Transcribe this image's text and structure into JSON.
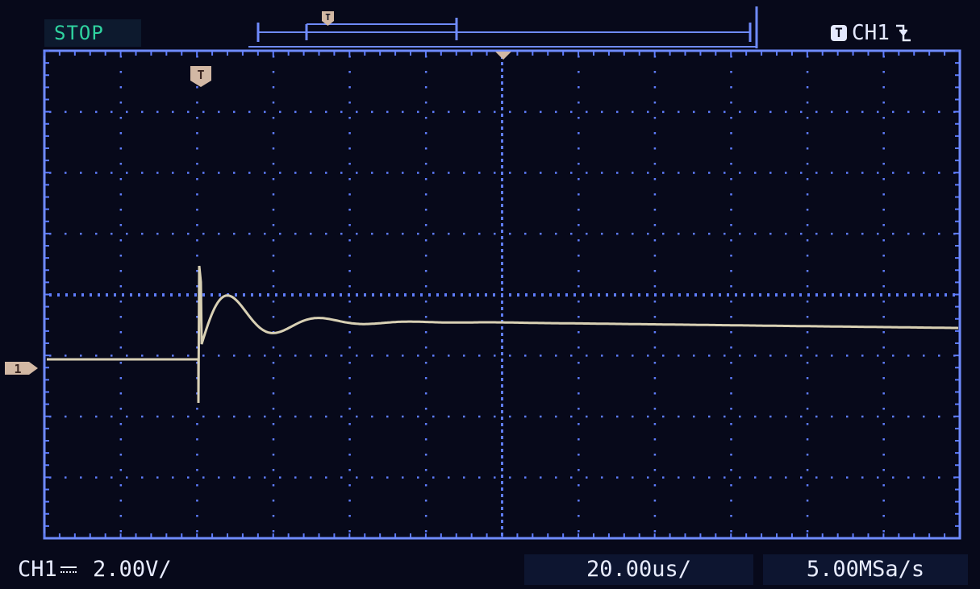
{
  "status": {
    "run_state": "STOP"
  },
  "trigger": {
    "source": "CH1",
    "slope_icon": "falling-edge-icon",
    "marker_letter": "T"
  },
  "channel": {
    "label": "CH1",
    "coupling_icon": "dc-coupling-icon",
    "vertical_scale": "2.00V/",
    "marker_number": "1"
  },
  "timebase": {
    "horizontal_scale": "20.00us/"
  },
  "acquisition": {
    "sample_rate": "5.00MSa/s"
  },
  "colors": {
    "grid": "#5f7dff",
    "frame": "#6f8bff",
    "trace": "#d8d0b4",
    "text": "#e8ecff",
    "stop_text": "#2fd3a0",
    "background": "#07091a"
  },
  "waveform": {
    "grid_divisions_x": 12,
    "grid_divisions_y": 8
  }
}
